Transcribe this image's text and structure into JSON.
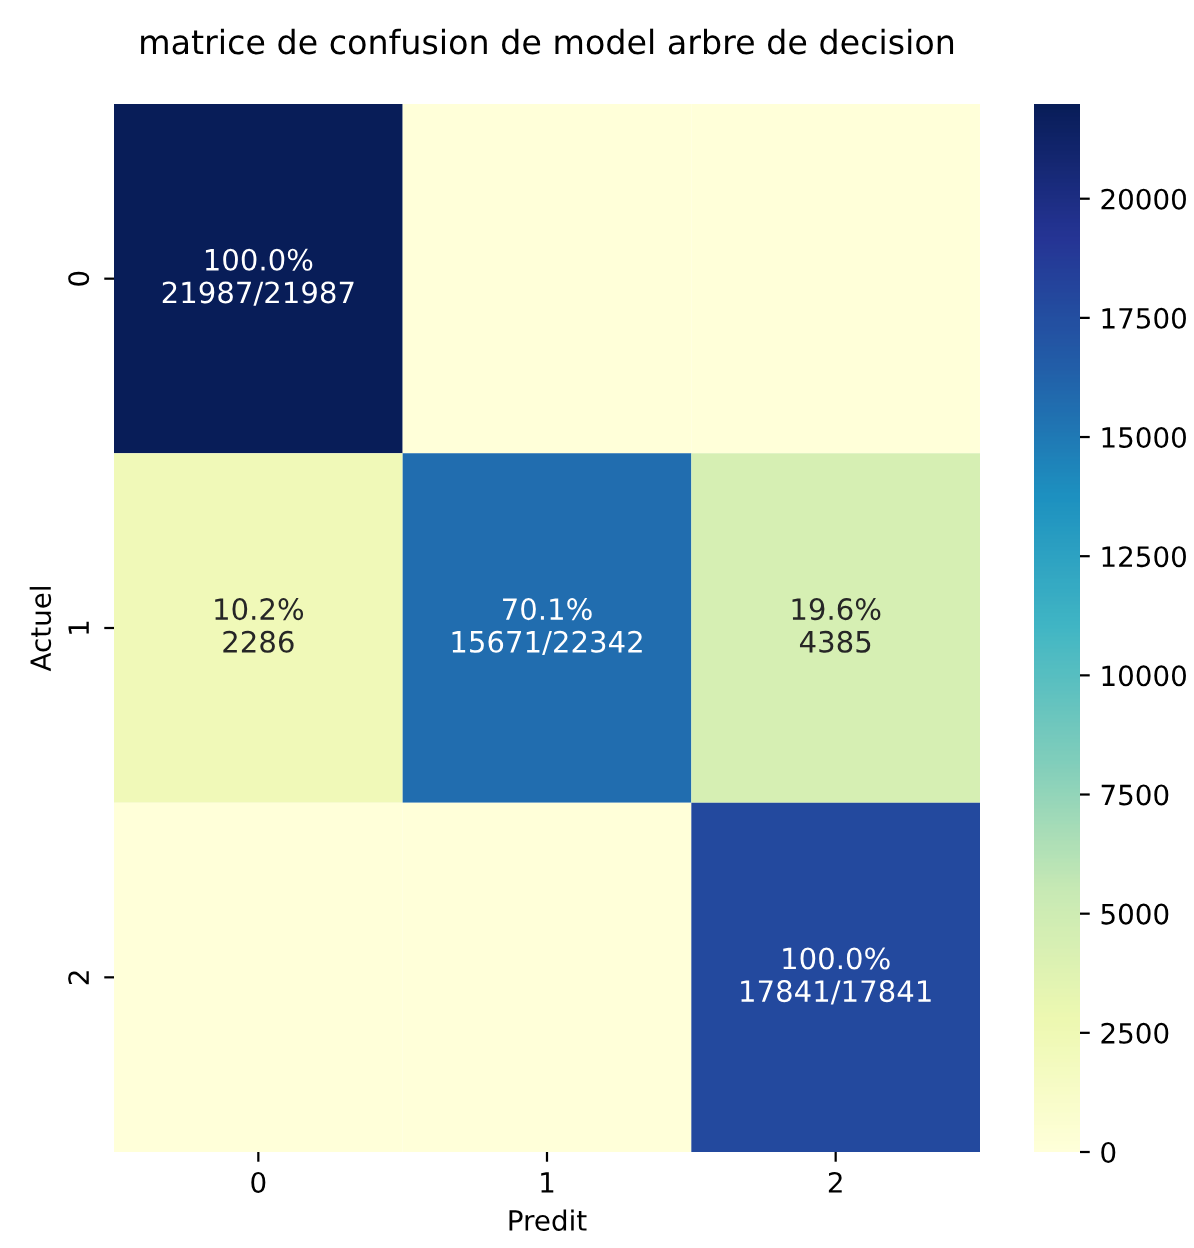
{
  "chart_data": {
    "type": "heatmap",
    "title": "matrice de confusion de model arbre de decision",
    "xlabel": "Predit",
    "ylabel": "Actuel",
    "categories": [
      "0",
      "1",
      "2"
    ],
    "y_categories": [
      "0",
      "1",
      "2"
    ],
    "cells": [
      [
        21987,
        0,
        0
      ],
      [
        2286,
        15671,
        4385
      ],
      [
        0,
        0,
        17841
      ]
    ],
    "cell_labels": [
      [
        "100.0%\n21987/21987",
        null,
        null
      ],
      [
        "10.2%\n2286",
        "70.1%\n15671/22342",
        "19.6%\n4385"
      ],
      [
        null,
        null,
        "100.0%\n17841/17841"
      ]
    ],
    "clim": [
      0,
      21987
    ],
    "cticks": [
      0,
      2500,
      5000,
      7500,
      10000,
      12500,
      15000,
      17500,
      20000
    ]
  }
}
